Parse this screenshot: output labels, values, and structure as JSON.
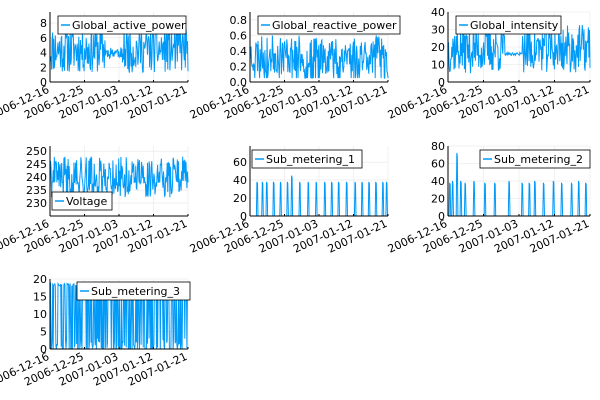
{
  "figure": {
    "background": "#ffffff",
    "series_color": "#009af9"
  },
  "chart_data": [
    {
      "type": "line",
      "series": [
        {
          "name": "Global_active_power"
        }
      ],
      "xlim": [
        "2006-12-16",
        "2007-01-21"
      ],
      "ylim": [
        0,
        9.5
      ],
      "yticks": [
        0,
        2,
        4,
        6,
        8
      ],
      "xticks": [
        "2006-12-16",
        "2006-12-25",
        "2007-01-03",
        "2007-01-12",
        "2007-01-21"
      ],
      "legend": "top-right",
      "grid": true,
      "gen": {
        "seed": 11,
        "base": 1.2,
        "spread": 6.5,
        "gap": 4.0,
        "gapw": 0.25
      }
    },
    {
      "type": "line",
      "series": [
        {
          "name": "Global_reactive_power"
        }
      ],
      "xlim": [
        "2006-12-16",
        "2007-01-21"
      ],
      "ylim": [
        0,
        0.9
      ],
      "yticks": [
        0.0,
        0.2,
        0.4,
        0.6,
        0.8
      ],
      "xticks": [
        "2006-12-16",
        "2006-12-25",
        "2007-01-03",
        "2007-01-12",
        "2007-01-21"
      ],
      "legend": "top-right",
      "grid": true,
      "gen": {
        "seed": 23,
        "base": 0.1,
        "spread": 0.5,
        "gap": 0.05,
        "gapw": 0.0
      }
    },
    {
      "type": "line",
      "series": [
        {
          "name": "Global_intensity"
        }
      ],
      "xlim": [
        "2006-12-16",
        "2007-01-21"
      ],
      "ylim": [
        0,
        40
      ],
      "yticks": [
        0,
        10,
        20,
        30,
        40
      ],
      "xticks": [
        "2006-12-16",
        "2006-12-25",
        "2007-01-03",
        "2007-01-12",
        "2007-01-21"
      ],
      "legend": "top-right",
      "grid": true,
      "gen": {
        "seed": 37,
        "base": 5,
        "spread": 28,
        "gap": 16,
        "gapw": 0.25
      }
    },
    {
      "type": "line",
      "series": [
        {
          "name": "Voltage"
        }
      ],
      "xlim": [
        "2006-12-16",
        "2007-01-21"
      ],
      "ylim": [
        225,
        252
      ],
      "yticks": [
        230,
        235,
        240,
        245,
        250
      ],
      "xticks": [
        "2006-12-16",
        "2006-12-25",
        "2007-01-03",
        "2007-01-12",
        "2007-01-21"
      ],
      "legend": "bottom-left",
      "grid": true,
      "gen": {
        "seed": 41,
        "base": 232,
        "spread": 16,
        "gap": 238,
        "gapw": 0.0
      }
    },
    {
      "type": "line",
      "series": [
        {
          "name": "Sub_metering_1"
        }
      ],
      "xlim": [
        "2006-12-16",
        "2007-01-21"
      ],
      "ylim": [
        0,
        78
      ],
      "yticks": [
        0,
        20,
        40,
        60
      ],
      "xticks": [
        "2006-12-16",
        "2006-12-25",
        "2007-01-03",
        "2007-01-12",
        "2007-01-21"
      ],
      "legend": "top-right",
      "grid": true,
      "gen": {
        "spikes": [
          [
            0.05,
            38
          ],
          [
            0.09,
            38
          ],
          [
            0.12,
            38
          ],
          [
            0.17,
            38
          ],
          [
            0.22,
            38
          ],
          [
            0.27,
            38
          ],
          [
            0.3,
            45
          ],
          [
            0.36,
            38
          ],
          [
            0.42,
            38
          ],
          [
            0.48,
            38
          ],
          [
            0.54,
            38
          ],
          [
            0.59,
            38
          ],
          [
            0.64,
            38
          ],
          [
            0.7,
            38
          ],
          [
            0.76,
            38
          ],
          [
            0.81,
            38
          ],
          [
            0.86,
            38
          ],
          [
            0.91,
            38
          ],
          [
            0.96,
            38
          ],
          [
            0.99,
            38
          ]
        ]
      }
    },
    {
      "type": "line",
      "series": [
        {
          "name": "Sub_metering_2"
        }
      ],
      "xlim": [
        "2006-12-16",
        "2007-01-21"
      ],
      "ylim": [
        0,
        80
      ],
      "yticks": [
        0,
        20,
        40,
        60,
        80
      ],
      "xticks": [
        "2006-12-16",
        "2006-12-25",
        "2007-01-03",
        "2007-01-12",
        "2007-01-21"
      ],
      "legend": "top-right",
      "grid": true,
      "gen": {
        "spikes": [
          [
            0.01,
            38
          ],
          [
            0.03,
            40
          ],
          [
            0.06,
            72
          ],
          [
            0.09,
            40
          ],
          [
            0.12,
            38
          ],
          [
            0.18,
            40
          ],
          [
            0.26,
            38
          ],
          [
            0.33,
            38
          ],
          [
            0.43,
            40
          ],
          [
            0.52,
            38
          ],
          [
            0.57,
            38
          ],
          [
            0.61,
            40
          ],
          [
            0.67,
            38
          ],
          [
            0.74,
            40
          ],
          [
            0.8,
            38
          ],
          [
            0.87,
            38
          ],
          [
            0.92,
            40
          ],
          [
            0.97,
            38
          ]
        ]
      }
    },
    {
      "type": "line",
      "series": [
        {
          "name": "Sub_metering_3"
        }
      ],
      "xlim": [
        "2006-12-16",
        "2007-01-21"
      ],
      "ylim": [
        0,
        20
      ],
      "yticks": [
        0,
        5,
        10,
        15,
        20
      ],
      "xticks": [
        "2006-12-16",
        "2006-12-25",
        "2007-01-03",
        "2007-01-12",
        "2007-01-21"
      ],
      "legend": "top-right",
      "grid": true,
      "gen": {
        "seed": 59,
        "block": 18
      }
    }
  ]
}
